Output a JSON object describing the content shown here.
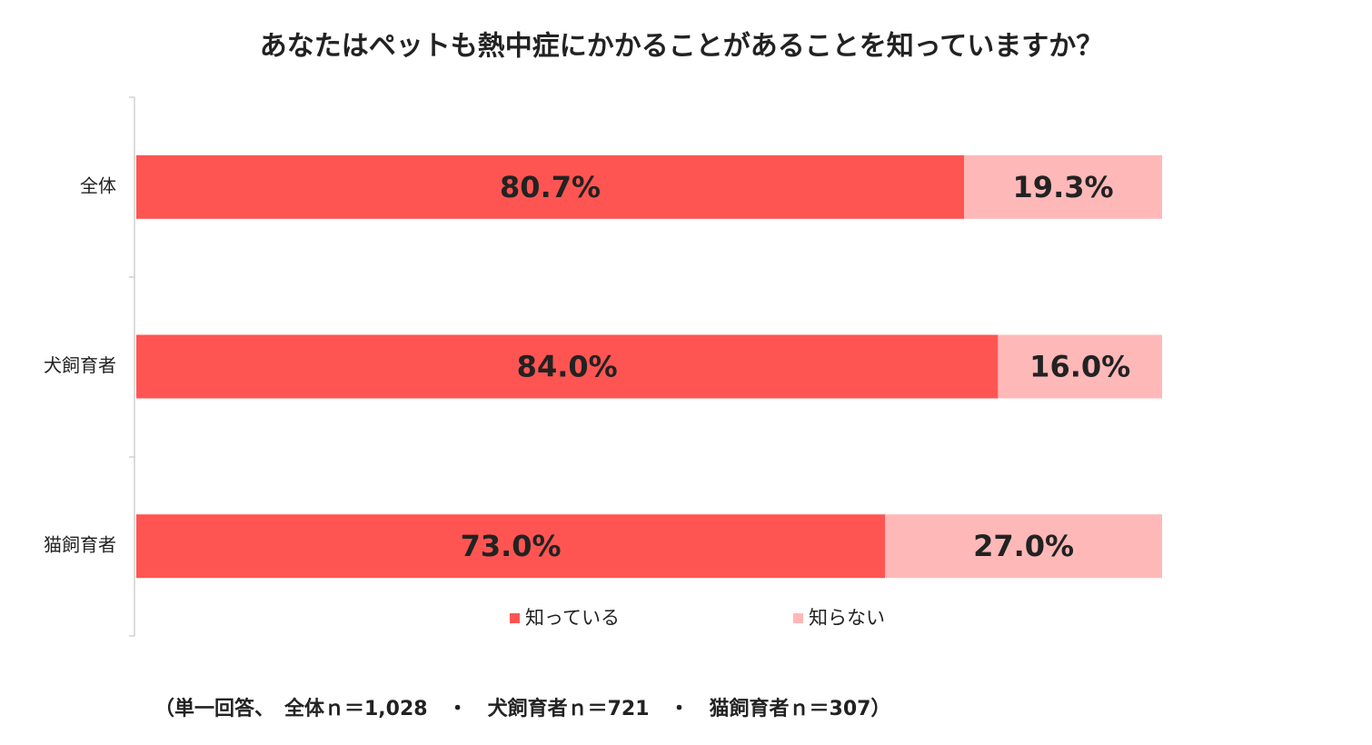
{
  "chart_data": {
    "type": "stacked-barh",
    "title": "あなたはペットも熱中症にかかることがあることを知っていますか？",
    "categories": [
      "全体",
      "犬飼育者",
      "猫飼育者"
    ],
    "series": [
      {
        "name": "知っている",
        "color": "#ff5552",
        "values": [
          80.7,
          84.0,
          73.0
        ],
        "value_labels": [
          "80.7%",
          "84.0%",
          "73.0%"
        ]
      },
      {
        "name": "知らない",
        "color": "#ffb8b8",
        "values": [
          19.3,
          16.0,
          27.0
        ],
        "value_labels": [
          "19.3%",
          "16.0%",
          "27.0%"
        ]
      }
    ],
    "xlim": [
      0,
      100
    ],
    "note": "（単一回答、　全体ｎ＝1,028　・　犬飼育者ｎ＝721　・　猫飼育者ｎ＝307）"
  }
}
